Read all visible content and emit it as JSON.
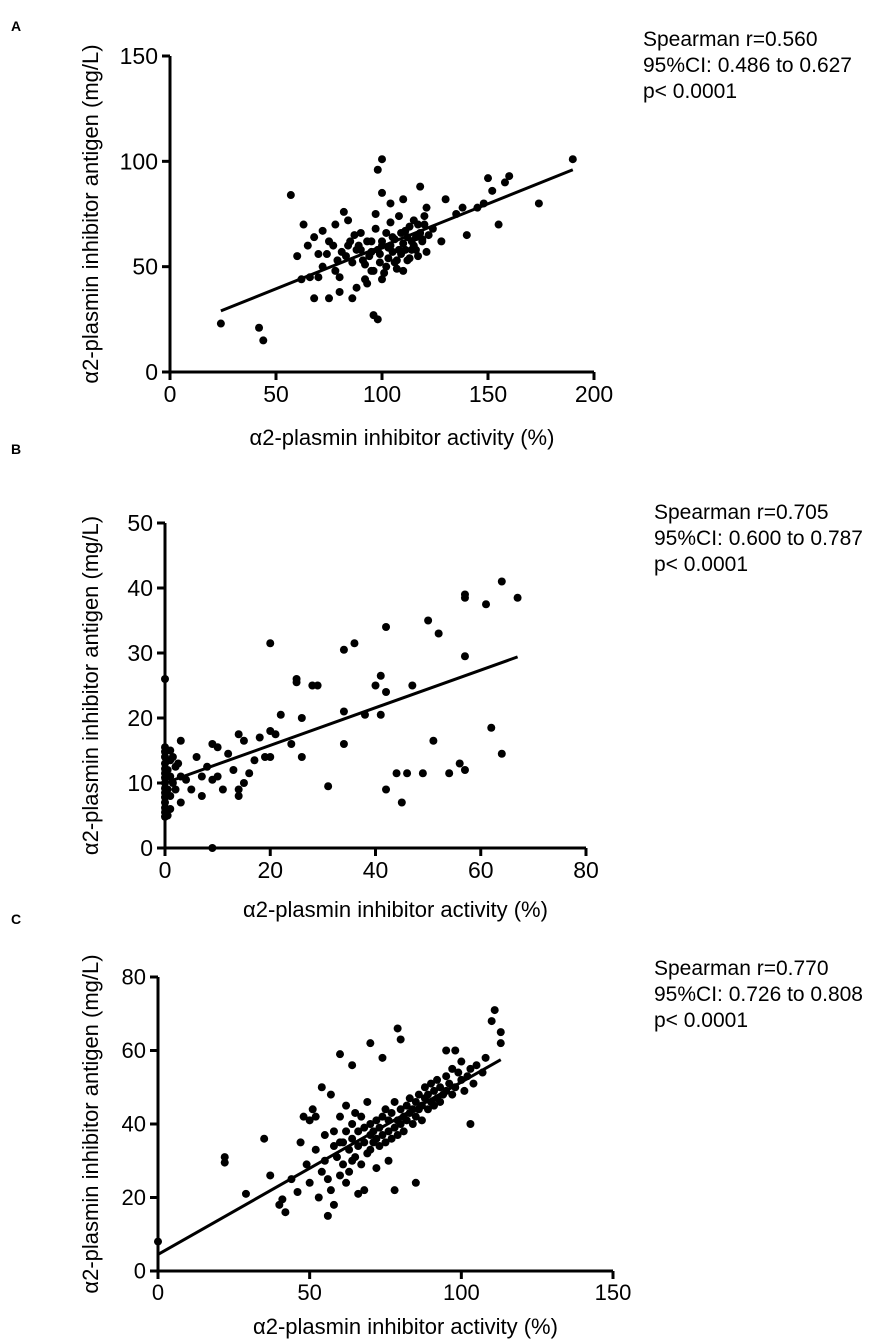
{
  "chart_data": [
    {
      "type": "scatter",
      "panel": "A",
      "title": "",
      "xlabel": "α2-plasmin inhibitor activity (%)",
      "ylabel": "α2-plasmin inhibitor antigen (mg/L)",
      "xlim": [
        0,
        200
      ],
      "ylim": [
        0,
        150
      ],
      "xticks": [
        0,
        50,
        100,
        150,
        200
      ],
      "yticks": [
        0,
        50,
        100,
        150
      ],
      "regression": {
        "x": [
          24,
          190
        ],
        "y": [
          29,
          96
        ]
      },
      "stats": [
        "Spearman r=0.560",
        "95%CI: 0.486 to 0.627",
        "p< 0.0001"
      ],
      "points": [
        [
          24,
          23
        ],
        [
          42,
          21
        ],
        [
          44,
          15
        ],
        [
          57,
          84
        ],
        [
          60,
          55
        ],
        [
          63,
          70
        ],
        [
          65,
          60
        ],
        [
          68,
          64
        ],
        [
          70,
          56
        ],
        [
          72,
          50
        ],
        [
          75,
          62
        ],
        [
          78,
          48
        ],
        [
          80,
          45
        ],
        [
          82,
          76
        ],
        [
          84,
          60
        ],
        [
          86,
          52
        ],
        [
          88,
          40
        ],
        [
          90,
          66
        ],
        [
          92,
          44
        ],
        [
          94,
          55
        ],
        [
          95,
          62
        ],
        [
          96,
          48
        ],
        [
          97,
          75
        ],
        [
          98,
          58
        ],
        [
          99,
          52
        ],
        [
          100,
          60
        ],
        [
          100,
          101
        ],
        [
          101,
          47
        ],
        [
          102,
          66
        ],
        [
          103,
          54
        ],
        [
          104,
          71
        ],
        [
          105,
          57
        ],
        [
          106,
          63
        ],
        [
          107,
          49
        ],
        [
          108,
          74
        ],
        [
          109,
          56
        ],
        [
          110,
          61
        ],
        [
          111,
          67
        ],
        [
          112,
          53
        ],
        [
          113,
          69
        ],
        [
          114,
          58
        ],
        [
          115,
          72
        ],
        [
          116,
          64
        ],
        [
          117,
          55
        ],
        [
          118,
          88
        ],
        [
          119,
          63
        ],
        [
          120,
          70
        ],
        [
          121,
          57
        ],
        [
          122,
          65
        ],
        [
          75,
          35
        ],
        [
          80,
          38
        ],
        [
          86,
          35
        ],
        [
          90,
          58
        ],
        [
          93,
          62
        ],
        [
          97,
          68
        ],
        [
          99,
          56
        ],
        [
          100,
          44
        ],
        [
          102,
          50
        ],
        [
          104,
          60
        ],
        [
          106,
          52
        ],
        [
          108,
          58
        ],
        [
          110,
          48
        ],
        [
          112,
          64
        ],
        [
          114,
          62
        ],
        [
          116,
          58
        ],
        [
          118,
          66
        ],
        [
          120,
          74
        ],
        [
          98,
          25
        ],
        [
          96,
          27
        ],
        [
          72,
          67
        ],
        [
          66,
          45
        ],
        [
          62,
          44
        ],
        [
          68,
          35
        ],
        [
          78,
          70
        ],
        [
          84,
          72
        ],
        [
          88,
          58
        ],
        [
          92,
          51
        ],
        [
          95,
          57
        ],
        [
          100,
          62
        ],
        [
          103,
          59
        ],
        [
          105,
          64
        ],
        [
          107,
          53
        ],
        [
          109,
          66
        ],
        [
          111,
          58
        ],
        [
          113,
          54
        ],
        [
          115,
          60
        ],
        [
          117,
          70
        ],
        [
          119,
          62
        ],
        [
          121,
          78
        ],
        [
          124,
          68
        ],
        [
          128,
          62
        ],
        [
          130,
          82
        ],
        [
          135,
          75
        ],
        [
          138,
          78
        ],
        [
          140,
          65
        ],
        [
          145,
          78
        ],
        [
          148,
          80
        ],
        [
          150,
          92
        ],
        [
          152,
          86
        ],
        [
          155,
          70
        ],
        [
          158,
          90
        ],
        [
          160,
          93
        ],
        [
          174,
          80
        ],
        [
          190,
          101
        ],
        [
          100,
          85
        ],
        [
          104,
          80
        ],
        [
          110,
          82
        ],
        [
          98,
          96
        ],
        [
          95,
          48
        ],
        [
          93,
          42
        ],
        [
          91,
          53
        ],
        [
          89,
          60
        ],
        [
          87,
          65
        ],
        [
          85,
          62
        ],
        [
          83,
          55
        ],
        [
          81,
          57
        ],
        [
          79,
          53
        ],
        [
          77,
          60
        ],
        [
          74,
          56
        ],
        [
          70,
          45
        ]
      ]
    },
    {
      "type": "scatter",
      "panel": "B",
      "title": "",
      "xlabel": "α2-plasmin inhibitor activity (%)",
      "ylabel": "α2-plasmin inhibitor antigen (mg/L)",
      "xlim": [
        0,
        80
      ],
      "ylim": [
        0,
        50
      ],
      "xticks": [
        0,
        20,
        40,
        60,
        80
      ],
      "yticks": [
        0,
        10,
        20,
        30,
        40,
        50
      ],
      "regression": {
        "x": [
          0,
          67
        ],
        "y": [
          10,
          29.4
        ]
      },
      "stats": [
        "Spearman r=0.705",
        "95%CI: 0.600 to 0.787",
        "p< 0.0001"
      ],
      "points": [
        [
          0,
          26
        ],
        [
          0,
          15.5
        ],
        [
          0,
          14.8
        ],
        [
          0,
          14
        ],
        [
          0,
          13
        ],
        [
          0,
          12.2
        ],
        [
          0,
          11.5
        ],
        [
          0,
          10.8
        ],
        [
          0,
          10
        ],
        [
          0,
          9.2
        ],
        [
          0,
          8.5
        ],
        [
          0,
          7.8
        ],
        [
          0,
          7
        ],
        [
          0,
          6.2
        ],
        [
          0,
          5.5
        ],
        [
          0,
          4.8
        ],
        [
          0.5,
          12
        ],
        [
          0.5,
          9
        ],
        [
          0.5,
          5
        ],
        [
          1,
          15
        ],
        [
          1,
          13.5
        ],
        [
          1,
          11
        ],
        [
          1,
          8
        ],
        [
          1,
          6
        ],
        [
          1.5,
          14
        ],
        [
          1.5,
          10
        ],
        [
          2,
          12.5
        ],
        [
          2,
          9
        ],
        [
          2.5,
          13
        ],
        [
          3,
          16.5
        ],
        [
          3,
          11
        ],
        [
          3,
          7
        ],
        [
          4,
          10.5
        ],
        [
          5,
          9
        ],
        [
          6,
          14
        ],
        [
          7,
          8
        ],
        [
          7,
          11
        ],
        [
          8,
          12.5
        ],
        [
          9,
          10.5
        ],
        [
          9,
          16
        ],
        [
          9,
          0
        ],
        [
          10,
          15.5
        ],
        [
          10,
          11
        ],
        [
          11,
          9
        ],
        [
          12,
          14.5
        ],
        [
          13,
          12
        ],
        [
          14,
          17.5
        ],
        [
          14,
          9
        ],
        [
          14,
          8
        ],
        [
          15,
          10
        ],
        [
          15,
          16.5
        ],
        [
          16,
          11.5
        ],
        [
          17,
          13.5
        ],
        [
          18,
          17
        ],
        [
          19,
          14
        ],
        [
          20,
          31.5
        ],
        [
          20,
          14
        ],
        [
          20,
          18
        ],
        [
          21,
          17.5
        ],
        [
          22,
          20.5
        ],
        [
          24,
          16
        ],
        [
          25,
          26
        ],
        [
          25,
          25.5
        ],
        [
          26,
          14
        ],
        [
          26,
          20
        ],
        [
          28,
          25
        ],
        [
          29,
          25
        ],
        [
          31,
          9.5
        ],
        [
          34,
          30.5
        ],
        [
          34,
          21
        ],
        [
          34,
          16
        ],
        [
          36,
          31.5
        ],
        [
          38,
          20.5
        ],
        [
          40,
          25
        ],
        [
          41,
          26.5
        ],
        [
          41,
          20.5
        ],
        [
          42,
          34
        ],
        [
          42,
          24
        ],
        [
          42,
          9
        ],
        [
          44,
          11.5
        ],
        [
          45,
          7
        ],
        [
          46,
          11.5
        ],
        [
          47,
          25
        ],
        [
          49,
          11.5
        ],
        [
          50,
          35
        ],
        [
          51,
          16.5
        ],
        [
          52,
          33
        ],
        [
          54,
          11.5
        ],
        [
          56,
          13
        ],
        [
          57,
          39
        ],
        [
          57,
          38.5
        ],
        [
          57,
          29.5
        ],
        [
          57,
          12
        ],
        [
          61,
          37.5
        ],
        [
          62,
          18.5
        ],
        [
          64,
          41
        ],
        [
          64,
          14.5
        ],
        [
          67,
          38.5
        ]
      ]
    },
    {
      "type": "scatter",
      "panel": "C",
      "title": "",
      "xlabel": "α2-plasmin inhibitor activity (%)",
      "ylabel": "α2-plasmin inhibitor antigen (mg/L)",
      "xlim": [
        0,
        150
      ],
      "ylim": [
        0,
        80
      ],
      "xticks": [
        0,
        50,
        100,
        150
      ],
      "yticks": [
        0,
        20,
        40,
        60,
        80
      ],
      "regression": {
        "x": [
          0,
          113
        ],
        "y": [
          4.5,
          57.5
        ]
      },
      "stats": [
        "Spearman r=0.770",
        "95%CI: 0.726 to 0.808",
        "p< 0.0001"
      ],
      "points": [
        [
          0,
          8
        ],
        [
          22,
          31
        ],
        [
          22,
          29.5
        ],
        [
          29,
          21
        ],
        [
          35,
          36
        ],
        [
          37,
          26
        ],
        [
          40,
          18
        ],
        [
          41,
          19.5
        ],
        [
          42,
          16
        ],
        [
          44,
          25
        ],
        [
          46,
          21.5
        ],
        [
          47,
          35
        ],
        [
          48,
          42
        ],
        [
          49,
          29
        ],
        [
          50,
          24
        ],
        [
          50,
          41
        ],
        [
          51,
          44
        ],
        [
          52,
          33
        ],
        [
          53,
          20
        ],
        [
          54,
          27
        ],
        [
          55,
          37
        ],
        [
          55,
          30
        ],
        [
          56,
          25
        ],
        [
          57,
          48
        ],
        [
          57,
          22
        ],
        [
          58,
          34
        ],
        [
          58,
          38
        ],
        [
          59,
          31
        ],
        [
          60,
          26
        ],
        [
          60,
          42
        ],
        [
          61,
          35
        ],
        [
          61,
          29
        ],
        [
          62,
          38
        ],
        [
          62,
          45
        ],
        [
          63,
          33
        ],
        [
          63,
          27
        ],
        [
          64,
          36
        ],
        [
          64,
          40
        ],
        [
          65,
          31
        ],
        [
          65,
          43
        ],
        [
          66,
          34
        ],
        [
          66,
          38
        ],
        [
          67,
          29
        ],
        [
          67,
          42
        ],
        [
          68,
          35
        ],
        [
          68,
          39
        ],
        [
          69,
          32
        ],
        [
          69,
          46
        ],
        [
          70,
          37
        ],
        [
          70,
          33
        ],
        [
          70,
          40
        ],
        [
          71,
          35
        ],
        [
          71,
          38
        ],
        [
          72,
          41
        ],
        [
          72,
          36
        ],
        [
          73,
          34
        ],
        [
          73,
          39
        ],
        [
          74,
          42
        ],
        [
          74,
          37
        ],
        [
          75,
          35
        ],
        [
          75,
          44
        ],
        [
          76,
          38
        ],
        [
          76,
          41
        ],
        [
          77,
          36
        ],
        [
          77,
          43
        ],
        [
          78,
          39
        ],
        [
          78,
          46
        ],
        [
          79,
          41
        ],
        [
          79,
          37
        ],
        [
          80,
          40
        ],
        [
          80,
          44
        ],
        [
          81,
          42
        ],
        [
          81,
          38
        ],
        [
          82,
          45
        ],
        [
          82,
          41
        ],
        [
          83,
          43
        ],
        [
          83,
          47
        ],
        [
          84,
          40
        ],
        [
          84,
          44
        ],
        [
          85,
          46
        ],
        [
          85,
          42
        ],
        [
          86,
          48
        ],
        [
          86,
          44
        ],
        [
          87,
          45
        ],
        [
          87,
          41
        ],
        [
          88,
          47
        ],
        [
          88,
          50
        ],
        [
          89,
          44
        ],
        [
          89,
          48
        ],
        [
          90,
          46
        ],
        [
          90,
          51
        ],
        [
          91,
          49
        ],
        [
          91,
          45
        ],
        [
          92,
          47
        ],
        [
          92,
          52
        ],
        [
          93,
          50
        ],
        [
          93,
          46
        ],
        [
          94,
          48
        ],
        [
          95,
          53
        ],
        [
          95,
          49
        ],
        [
          96,
          51
        ],
        [
          97,
          55
        ],
        [
          97,
          48
        ],
        [
          98,
          50
        ],
        [
          99,
          54
        ],
        [
          100,
          52
        ],
        [
          100,
          57
        ],
        [
          101,
          49
        ],
        [
          102,
          53
        ],
        [
          103,
          55
        ],
        [
          104,
          51
        ],
        [
          105,
          56
        ],
        [
          107,
          54
        ],
        [
          108,
          58
        ],
        [
          110,
          68
        ],
        [
          111,
          71
        ],
        [
          113,
          65
        ],
        [
          113,
          62
        ],
        [
          60,
          59
        ],
        [
          64,
          56
        ],
        [
          70,
          62
        ],
        [
          74,
          58
        ],
        [
          79,
          66
        ],
        [
          80,
          63
        ],
        [
          78,
          22
        ],
        [
          85,
          24
        ],
        [
          95,
          60
        ],
        [
          98,
          60
        ],
        [
          103,
          40
        ],
        [
          54,
          50
        ],
        [
          52,
          42
        ],
        [
          58,
          18
        ],
        [
          56,
          15
        ],
        [
          62,
          24
        ],
        [
          66,
          21
        ],
        [
          72,
          28
        ],
        [
          68,
          22
        ],
        [
          60,
          35
        ],
        [
          64,
          30
        ],
        [
          76,
          30
        ]
      ]
    }
  ],
  "panels": [
    {
      "letter": "A"
    },
    {
      "letter": "B"
    },
    {
      "letter": "C"
    }
  ]
}
